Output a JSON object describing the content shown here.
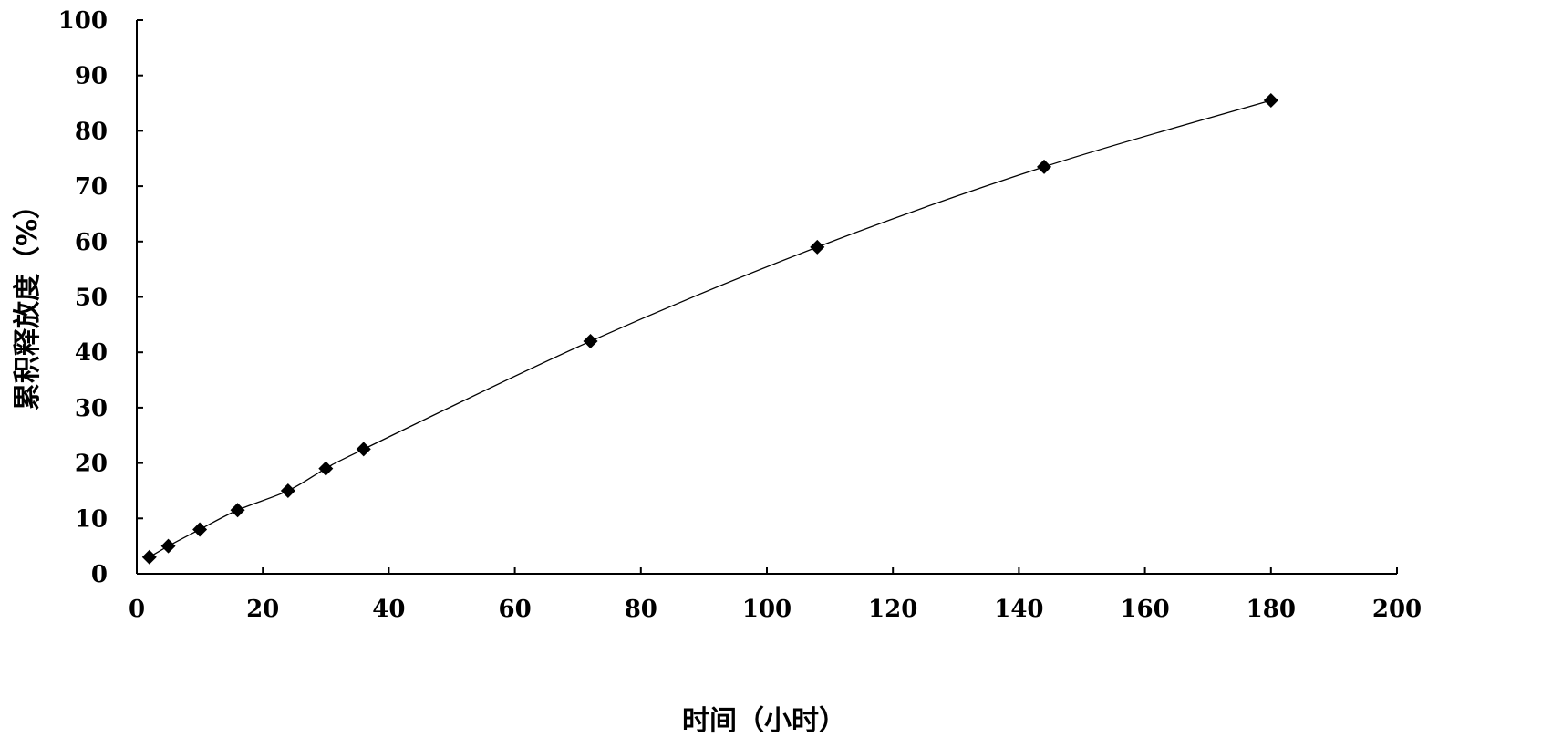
{
  "chart_data": {
    "type": "line",
    "title": "",
    "xlabel": "时间（小时）",
    "ylabel": "累积释放度（%）",
    "xlim": [
      0,
      200
    ],
    "ylim": [
      0,
      100
    ],
    "x_ticks": [
      "0",
      "20",
      "40",
      "60",
      "80",
      "100",
      "120",
      "140",
      "160",
      "180",
      "200"
    ],
    "y_ticks": [
      "0",
      "10",
      "20",
      "30",
      "40",
      "50",
      "60",
      "70",
      "80",
      "90",
      "100"
    ],
    "grid": false,
    "marker": "diamond",
    "line_color": "#000000",
    "series": [
      {
        "x": [
          2,
          5,
          10,
          16,
          24,
          30,
          36,
          72,
          108,
          144,
          180
        ],
        "y": [
          3,
          5,
          8,
          11.5,
          15,
          19,
          22.5,
          42,
          59,
          73.5,
          85.5
        ]
      }
    ]
  }
}
